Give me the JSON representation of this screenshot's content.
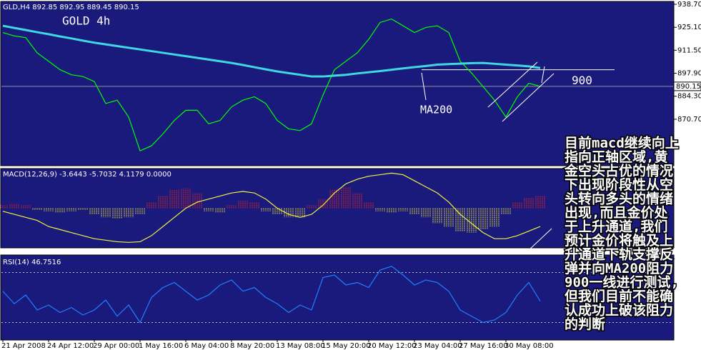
{
  "chart_data": [
    {
      "type": "line",
      "title": "GOLD 4h",
      "subtitle": "GLD,H4  892.85 892.95 889.45 890.15",
      "categories": [
        "21 Apr 2008",
        null,
        null,
        null,
        "24 Apr 12:00",
        null,
        null,
        null,
        "29 Apr 00:00",
        null,
        null,
        null,
        "1 May 16:00",
        null,
        null,
        null,
        "6 May 04:00",
        null,
        null,
        null,
        "8 May 20:00",
        null,
        null,
        null,
        "13 May 08:00",
        null,
        null,
        null,
        "15 May 20:00",
        null,
        null,
        null,
        "20 May 12:00",
        null,
        null,
        null,
        "23 May 04:00",
        null,
        null,
        null,
        "27 May 16:00",
        null,
        null,
        null,
        "30 May 08:00",
        null,
        null,
        null
      ],
      "series": [
        {
          "color": "#00ff00",
          "values": [
            922,
            920,
            919,
            910,
            905,
            900,
            897,
            896,
            893,
            880,
            882,
            872,
            852,
            855,
            862,
            870,
            876,
            876,
            868,
            870,
            878,
            882,
            884,
            880,
            870,
            865,
            864,
            868,
            885,
            900,
            905,
            910,
            918,
            928,
            930,
            926,
            922,
            925,
            926,
            922,
            905,
            898,
            890,
            882,
            872,
            884,
            892,
            890.15
          ]
        },
        {
          "color": "#40d8e0",
          "values": [
            926,
            924.7,
            923.5,
            922.2,
            921,
            919.7,
            918.5,
            917.2,
            916,
            915,
            914,
            913,
            912,
            911,
            910,
            909,
            908,
            907,
            906,
            905,
            904,
            902.8,
            901.5,
            900.2,
            899,
            898,
            897,
            896,
            896,
            896.5,
            897,
            897.8,
            898.5,
            899.2,
            900,
            900.8,
            901.5,
            902.2,
            903,
            903.3,
            903.6,
            903.9,
            904,
            903.5,
            903,
            902.5,
            902,
            901
          ]
        }
      ],
      "ylim": [
        843.2,
        940.4
      ],
      "yticks": [
        {
          "value": 938.7,
          "label": "938.70"
        },
        {
          "value": 925.1,
          "label": "925.10"
        },
        {
          "value": 911.5,
          "label": "911.50"
        },
        {
          "value": 897.9,
          "label": "897.90"
        },
        {
          "value": 884.3,
          "label": "884.30"
        },
        {
          "value": 870.7,
          "label": "870.70"
        }
      ],
      "last_price": {
        "value": 890.15,
        "label": "890.15"
      },
      "resistance": {
        "value": 900,
        "label": "900"
      },
      "ma_label": "MA200",
      "annotation_lines": [
        "目前macd继续向上",
        "指向正轴区域,黄",
        "金空头占优的情况",
        "下出现阶段性从空",
        "头转向多头的情绪",
        "出现,而且金价处",
        "于上升通道,我们",
        "预计金价将触及上",
        "升通道下轨支撑反",
        "弹并向MA200阻力",
        "900一线进行测试,",
        "但我们目前不能确",
        "认成功上破该阻力",
        "的判断"
      ]
    },
    {
      "type": "macd",
      "title": "MACD(12,26,9) -3.6443 -5.7032 4.1179 0.0000",
      "values": [
        1,
        1.5,
        1,
        -0.5,
        -1,
        -1.5,
        -1,
        -0.5,
        -2,
        -3,
        -3.5,
        -3,
        -2,
        2,
        4,
        6,
        6.5,
        5,
        -1,
        -1.5,
        1,
        2.5,
        2,
        -1,
        -2,
        -3,
        -3,
        1,
        3,
        6,
        7,
        5,
        2,
        -1,
        -1.5,
        -1,
        -2,
        -3,
        -5,
        -6,
        -7.5,
        -8,
        -7,
        -6,
        -2,
        2,
        3.5,
        4
      ],
      "color_positive": "#e02020",
      "color_negative": "#e8e030",
      "series": [
        {
          "color": "#f0f040",
          "values": [
            -1,
            -2,
            -3,
            -4,
            -6,
            -7,
            -8,
            -9,
            -10,
            -10.5,
            -11,
            -11.2,
            -11,
            -9,
            -6,
            -3,
            0,
            2,
            3,
            4,
            5,
            5.5,
            5,
            3,
            0,
            -2,
            -3,
            -2,
            1,
            5,
            8,
            9.5,
            10.5,
            11,
            11.5,
            11,
            9,
            7,
            5,
            2,
            -2,
            -5,
            -8,
            -10,
            -10,
            -9,
            -7.5,
            -6
          ]
        }
      ],
      "ylim": [
        -13,
        13
      ]
    },
    {
      "type": "line",
      "title": "RSI(14) 46.7516",
      "series": [
        {
          "color": "#2080ff",
          "values": [
            55,
            45,
            52,
            40,
            44,
            38,
            42,
            36,
            40,
            48,
            35,
            44,
            30,
            50,
            58,
            62,
            55,
            48,
            52,
            60,
            64,
            55,
            58,
            50,
            45,
            38,
            44,
            40,
            66,
            68,
            60,
            62,
            58,
            72,
            75,
            68,
            60,
            64,
            62,
            55,
            40,
            35,
            30,
            32,
            38,
            52,
            62,
            47
          ]
        }
      ],
      "ylim": [
        16,
        84
      ],
      "levels": [
        70,
        30
      ]
    }
  ]
}
